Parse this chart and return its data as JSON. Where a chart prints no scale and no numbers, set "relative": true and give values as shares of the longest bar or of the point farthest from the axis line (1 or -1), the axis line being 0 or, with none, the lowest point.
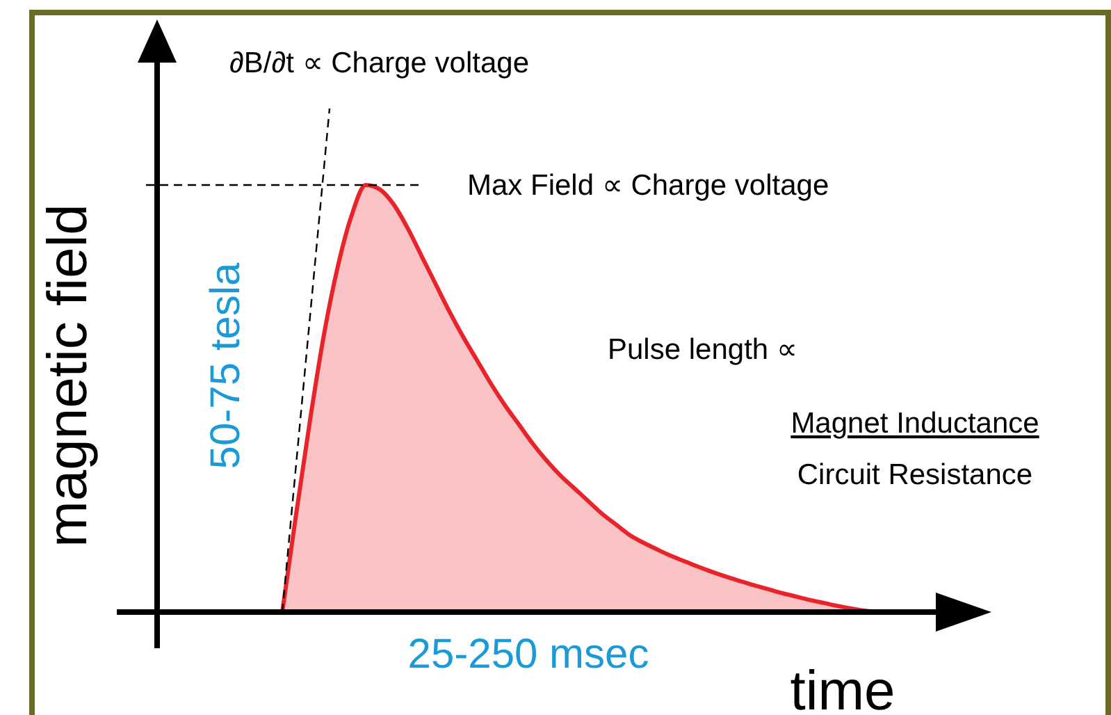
{
  "chart_data": {
    "type": "area",
    "relative": true,
    "xlabel": "time",
    "ylabel": "magnetic field",
    "categories": [
      null,
      null,
      null,
      null,
      null,
      null,
      null,
      null,
      null,
      null,
      null,
      null,
      null,
      null,
      null,
      null,
      null,
      null,
      null,
      null,
      null,
      null,
      null,
      null,
      null,
      null,
      null,
      null,
      null,
      null,
      null,
      null,
      null,
      null,
      null,
      null,
      null,
      null,
      null,
      null,
      null,
      null,
      null,
      null,
      null,
      null,
      null,
      null,
      null,
      null,
      null,
      null,
      null,
      null,
      null,
      null,
      null,
      null
    ],
    "series": [
      {
        "color": "#e8242b",
        "values": [
          null,
          null,
          null,
          null,
          null,
          null,
          null,
          null,
          null,
          0,
          0.23,
          0.45,
          0.65,
          0.81,
          0.93,
          1,
          0.99,
          0.955,
          0.9,
          0.835,
          0.77,
          0.705,
          0.645,
          0.59,
          0.535,
          0.485,
          0.44,
          0.395,
          0.355,
          0.32,
          0.29,
          0.26,
          0.23,
          0.205,
          0.18,
          0.162,
          0.146,
          0.131,
          0.118,
          0.105,
          0.093,
          0.082,
          0.072,
          0.062,
          0.053,
          0.044,
          0.036,
          0.028,
          0.021,
          0.014,
          0.008,
          0.003,
          0,
          null,
          null,
          null,
          null,
          null
        ]
      }
    ],
    "ref_lines": [
      {
        "axis": "y",
        "value": 1,
        "line_style": "dashed",
        "color": "#000000"
      }
    ],
    "annotations": [
      "∂B/∂t ∝ Charge voltage",
      "Max Field ∝ Charge voltage",
      "Pulse length ∝",
      "Magnet Inductance",
      "Circuit Resistance",
      "50-75 tesla",
      "25-250 msec"
    ]
  }
}
